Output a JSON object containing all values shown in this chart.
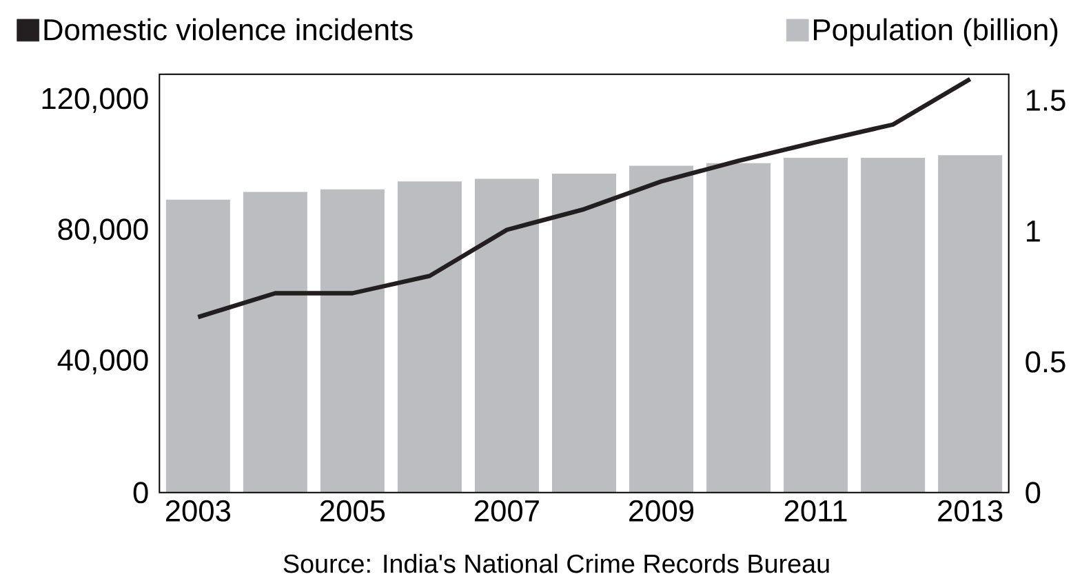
{
  "chart_data": {
    "type": "bar",
    "categories": [
      "2003",
      null,
      "2005",
      null,
      "2007",
      null,
      "2009",
      null,
      "2011",
      null,
      "2013"
    ],
    "series": [
      {
        "name": "Domestic violence incidents",
        "type": "line",
        "color": "#231f20",
        "values": [
          53700,
          61000,
          61000,
          66300,
          80400,
          86700,
          95200,
          101500,
          107200,
          112600,
          126500
        ]
      },
      {
        "name": "Population (billion)",
        "axis": "y2",
        "color": "#bcbdc0",
        "values": [
          1.12,
          1.15,
          1.16,
          1.19,
          1.2,
          1.22,
          1.25,
          1.26,
          1.28,
          1.28,
          1.29
        ]
      }
    ],
    "ylim": [
      0,
      128000
    ],
    "yticks": [
      {
        "value": 0,
        "label": "0"
      },
      {
        "value": 40000,
        "label": "40,000"
      },
      {
        "value": 80000,
        "label": "80,000"
      },
      {
        "value": 120000,
        "label": "120,000"
      }
    ],
    "y2lim": [
      0,
      1.6
    ],
    "y2ticks": [
      0,
      0.5,
      1,
      1.5
    ],
    "legend": "top",
    "annotations": [
      "Source: India's National Crime Records Bureau"
    ]
  }
}
